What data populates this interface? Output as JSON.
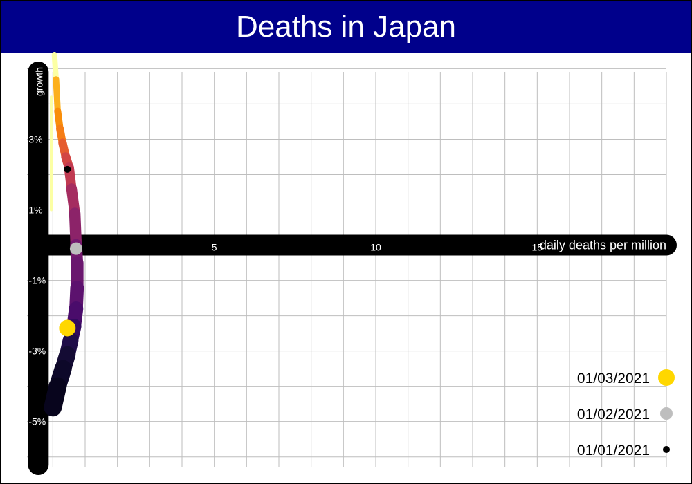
{
  "chart_data": {
    "type": "line",
    "title": "Deaths in Japan",
    "xlabel": "daily deaths per million",
    "ylabel": "growth",
    "x_ticks": [
      5,
      10,
      15
    ],
    "y_ticks": [
      "3%",
      "1%",
      "-1%",
      "-3%",
      "-5%"
    ],
    "y_tick_values": [
      3,
      1,
      -1,
      -3,
      -5
    ],
    "xlim": [
      -0.8,
      19
    ],
    "ylim": [
      -6.3,
      5.4
    ],
    "grid": true,
    "colors": {
      "title_bg": "#00008b",
      "axis_band": "#000000",
      "grid": "#bebebe",
      "marker_2021_03_01": "#ffd700",
      "marker_2021_02_01": "#bebebe",
      "marker_2021_01_01": "#000000"
    },
    "series": [
      {
        "x": [
          0.05,
          0.1,
          0.15,
          0.22,
          0.3,
          0.4,
          0.5,
          0.58,
          0.68,
          0.72,
          0.75,
          0.75,
          0.72,
          0.65,
          0.55,
          0.45,
          0.32,
          0.15,
          0.0
        ],
        "y": [
          5.4,
          4.7,
          3.8,
          3.3,
          2.9,
          2.5,
          2.2,
          1.6,
          0.9,
          0.0,
          -0.5,
          -1.2,
          -1.8,
          -2.3,
          -2.7,
          -3.1,
          -3.5,
          -4.0,
          -4.6
        ],
        "colors": [
          "#fcffa4",
          "#fcb01d",
          "#f98e09",
          "#f57d15",
          "#e55c30",
          "#d24644",
          "#c03a51",
          "#a52c60",
          "#8c2369",
          "#74196e",
          "#6a176e",
          "#5c126e",
          "#4a0c6b",
          "#320a5e",
          "#1f0c48",
          "#140b34",
          "#0d0829",
          "#08051d",
          "#000004"
        ]
      }
    ],
    "thin_segment": {
      "x": [
        -0.05,
        -0.05
      ],
      "y": [
        4.2,
        1.0
      ]
    },
    "markers": [
      {
        "date": "01/03/2021",
        "x": 0.45,
        "y": -2.35
      },
      {
        "date": "01/02/2021",
        "x": 0.72,
        "y": -0.1
      },
      {
        "date": "01/01/2021",
        "x": 0.45,
        "y": 2.15
      }
    ],
    "legend": {
      "position": "bottom-right",
      "entries": [
        "01/03/2021",
        "01/02/2021",
        "01/01/2021"
      ]
    }
  }
}
